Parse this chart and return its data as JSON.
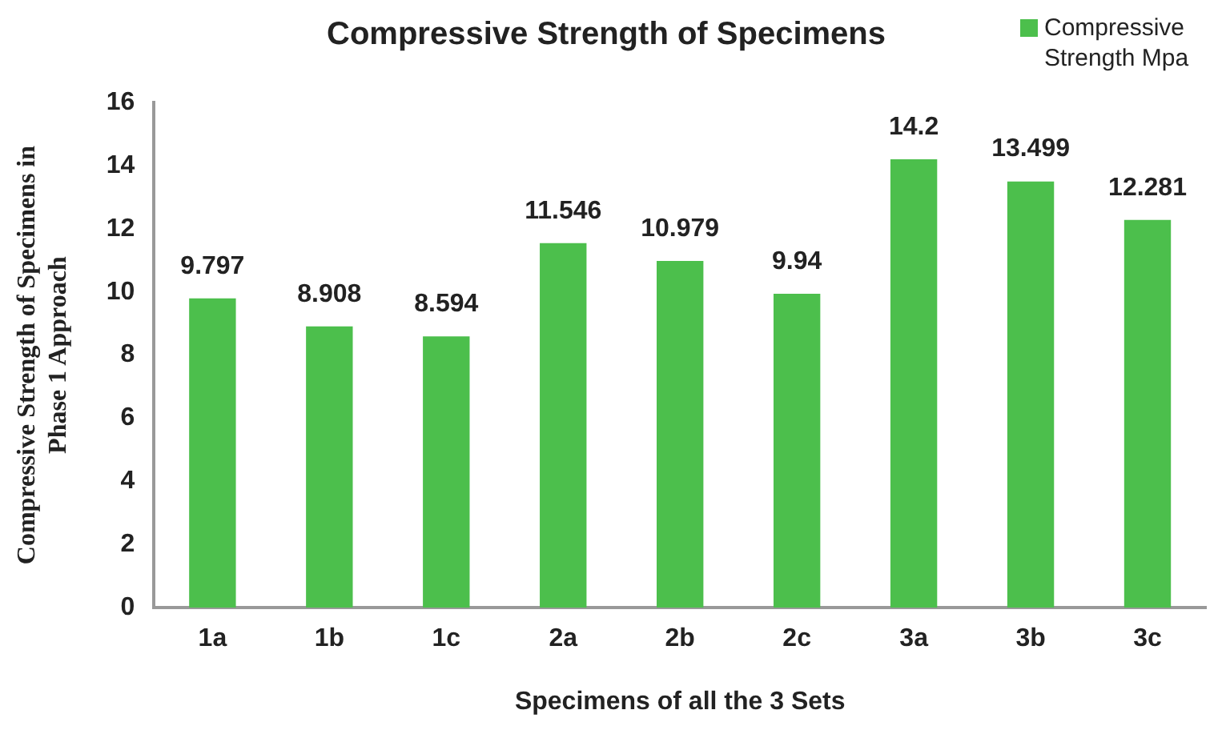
{
  "chart_data": {
    "type": "bar",
    "title": "Compressive Strength of Specimens",
    "xlabel": "Specimens of all the 3 Sets",
    "ylabel": "Compressive Strength of Specimens in Phase 1 Approach",
    "categories": [
      "1a",
      "1b",
      "1c",
      "2a",
      "2b",
      "2c",
      "3a",
      "3b",
      "3c"
    ],
    "series": [
      {
        "name": "Compressive Strength Mpa",
        "color": "#4cbf4c",
        "values": [
          9.797,
          8.908,
          8.594,
          11.546,
          10.979,
          9.94,
          14.2,
          13.499,
          12.281
        ]
      }
    ],
    "ylim": [
      0,
      16
    ],
    "yticks": [
      0,
      2,
      4,
      6,
      8,
      10,
      12,
      14,
      16
    ],
    "grid": false,
    "legend": "top right",
    "data_labels": true
  }
}
